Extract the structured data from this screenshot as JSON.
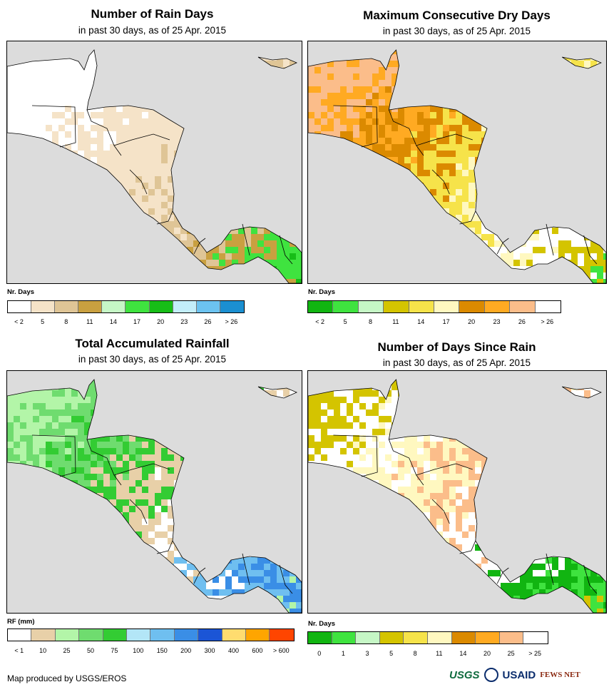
{
  "panels": [
    {
      "id": "rain-days",
      "title": "Number of Rain Days",
      "subtitle": "in past 30 days, as of 25 Apr. 2015",
      "legend_unit": "Nr. Days",
      "colors": [
        "#ffffff",
        "#f5e3c8",
        "#dfc596",
        "#c9a040",
        "#c6f7c6",
        "#3fe33f",
        "#17bd17",
        "#c3eefa",
        "#6cc3f0",
        "#1b8fd1"
      ],
      "ticks": [
        "< 2",
        "5",
        "8",
        "11",
        "14",
        "17",
        "20",
        "23",
        "26",
        "> 26"
      ],
      "palette": [
        "#ffffff",
        "#ffffff",
        "#ffffff",
        "#f5e3c8",
        "#f5e3c8",
        "#dfc596",
        "#c9a040",
        "#3fe33f",
        "#17bd17"
      ]
    },
    {
      "id": "dry-days",
      "title": "Maximum Consecutive Dry Days",
      "subtitle": "in past 30 days, as of 25 Apr. 2015",
      "legend_unit": "Nr. Days",
      "colors": [
        "#11b511",
        "#3fe33f",
        "#c6f7c6",
        "#d4c400",
        "#f6e34a",
        "#fff8c0",
        "#db8a00",
        "#ffaa22",
        "#fbbd8a",
        "#ffffff"
      ],
      "ticks": [
        "< 2",
        "5",
        "8",
        "11",
        "14",
        "17",
        "20",
        "23",
        "26",
        "> 26"
      ],
      "palette": [
        "#fbbd8a",
        "#fbbd8a",
        "#ffaa22",
        "#db8a00",
        "#f6e34a",
        "#fff8c0",
        "#ffffff",
        "#d4c400",
        "#3fe33f"
      ]
    },
    {
      "id": "rainfall",
      "title": "Total Accumulated Rainfall",
      "subtitle": "in past 30 days, as of 25 Apr. 2015",
      "legend_unit": "RF (mm)",
      "colors": [
        "#ffffff",
        "#e8d0a8",
        "#b3f5a8",
        "#6fdc6f",
        "#33cc33",
        "#b3e6f7",
        "#6fbff0",
        "#3a8ee6",
        "#1b55d6",
        "#ffdc6f",
        "#ffa500",
        "#ff4500"
      ],
      "ticks": [
        "< 1",
        "10",
        "25",
        "50",
        "75",
        "100",
        "150",
        "200",
        "300",
        "400",
        "600",
        "> 600"
      ],
      "palette": [
        "#b3f5a8",
        "#b3f5a8",
        "#6fdc6f",
        "#33cc33",
        "#e8d0a8",
        "#ffffff",
        "#6fbff0",
        "#3a8ee6",
        "#b3f5a8"
      ]
    },
    {
      "id": "since-rain",
      "title": "Number of Days Since Rain",
      "subtitle": "in past 30 days, as of 25 Apr. 2015",
      "legend_unit": "Nr. Days",
      "colors": [
        "#11b511",
        "#3fe33f",
        "#c6f7c6",
        "#d4c400",
        "#f6e34a",
        "#fff8c0",
        "#db8a00",
        "#ffaa22",
        "#fbbd8a",
        "#ffffff"
      ],
      "ticks": [
        "0",
        "1",
        "3",
        "5",
        "8",
        "11",
        "14",
        "20",
        "25",
        "> 25"
      ],
      "palette": [
        "#d4c400",
        "#d4c400",
        "#ffffff",
        "#fff8c0",
        "#fbbd8a",
        "#ffffff",
        "#11b511",
        "#3fe33f",
        "#d4c400"
      ]
    }
  ],
  "credit": "Map produced by USGS/EROS",
  "logos": {
    "usgs": "USGS",
    "usaid": "USAID",
    "fews": "FEWS NET"
  }
}
